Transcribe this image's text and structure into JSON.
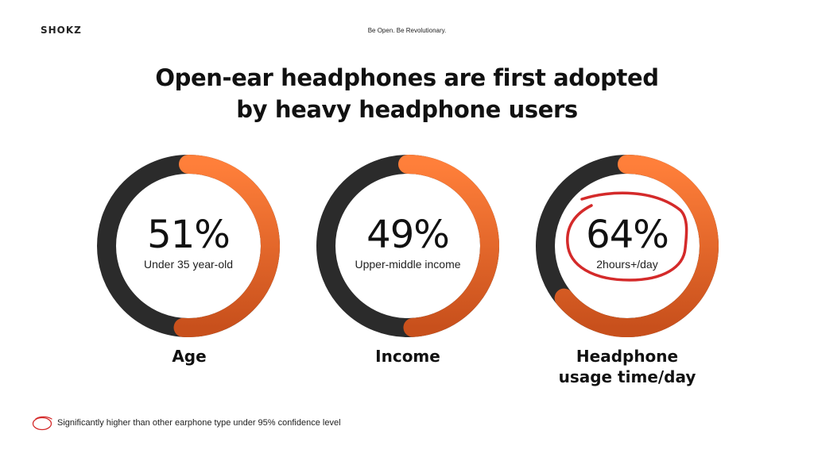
{
  "header": {
    "logo": "SHOKZ",
    "tagline": "Be Open. Be Revolutionary."
  },
  "title": {
    "line1": "Open-ear headphones are first adopted",
    "line2": "by heavy headphone users"
  },
  "colors": {
    "track": "#2b2b2b",
    "accent_top": "#ff7f3a",
    "accent_bottom": "#c8501c",
    "highlight_ring": "#d42a2a"
  },
  "chart_data": [
    {
      "type": "pie",
      "value": 51,
      "value_label": "51%",
      "sublabel": "Under 35 year-old",
      "category": "Age",
      "highlighted": false
    },
    {
      "type": "pie",
      "value": 49,
      "value_label": "49%",
      "sublabel": "Upper-middle income",
      "category": "Income",
      "highlighted": false
    },
    {
      "type": "pie",
      "value": 64,
      "value_label": "64%",
      "sublabel": "2hours+/day",
      "category_line1": "Headphone",
      "category_line2": "usage time/day",
      "highlighted": true
    }
  ],
  "footnote": {
    "icon": "red-circle-icon",
    "text": "Significantly higher than other earphone type under 95% confidence level"
  }
}
